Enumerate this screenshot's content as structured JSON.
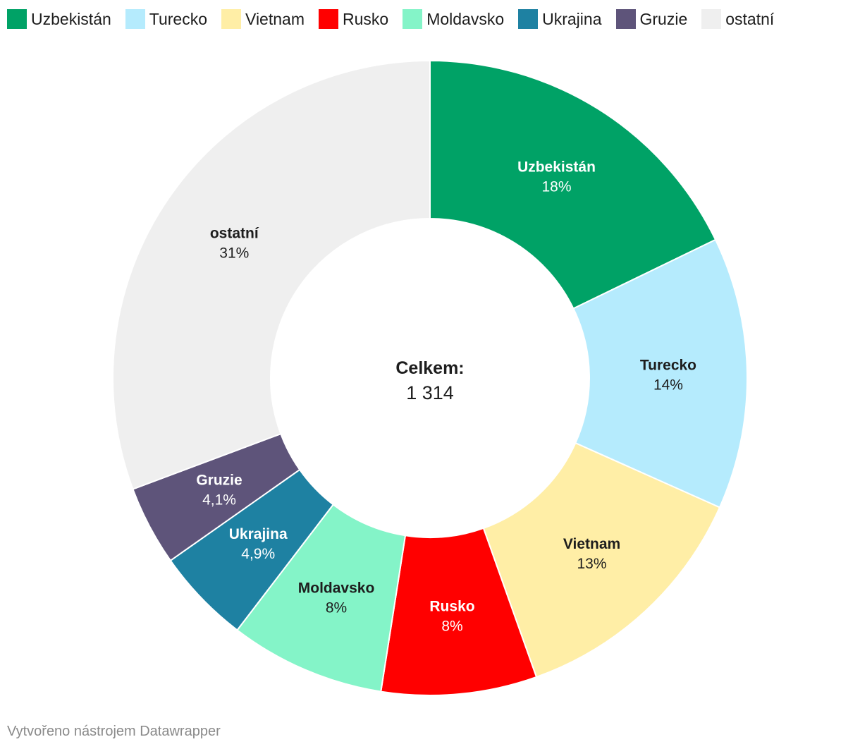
{
  "chart_data": {
    "type": "pie",
    "donut": true,
    "legend_position": "top",
    "categories": [
      "Uzbekistán",
      "Turecko",
      "Vietnam",
      "Rusko",
      "Moldavsko",
      "Ukrajina",
      "Gruzie",
      "ostatní"
    ],
    "values": [
      18,
      14,
      13,
      8,
      8,
      4.9,
      4.1,
      31
    ],
    "value_labels": [
      "18%",
      "14%",
      "13%",
      "8%",
      "8%",
      "4,9%",
      "4,1%",
      "31%"
    ],
    "colors": [
      "#00a266",
      "#b5ebfd",
      "#ffeea6",
      "#ff0000",
      "#84f4c8",
      "#1e81a2",
      "#5e547a",
      "#efefef"
    ],
    "label_colors": [
      "#ffffff",
      "#1d1d1d",
      "#1d1d1d",
      "#ffffff",
      "#1d1d1d",
      "#ffffff",
      "#ffffff",
      "#1d1d1d"
    ],
    "center_title": "Celkem:",
    "center_value": "1 314"
  },
  "footer": {
    "credit": "Vytvořeno nástrojem Datawrapper"
  }
}
